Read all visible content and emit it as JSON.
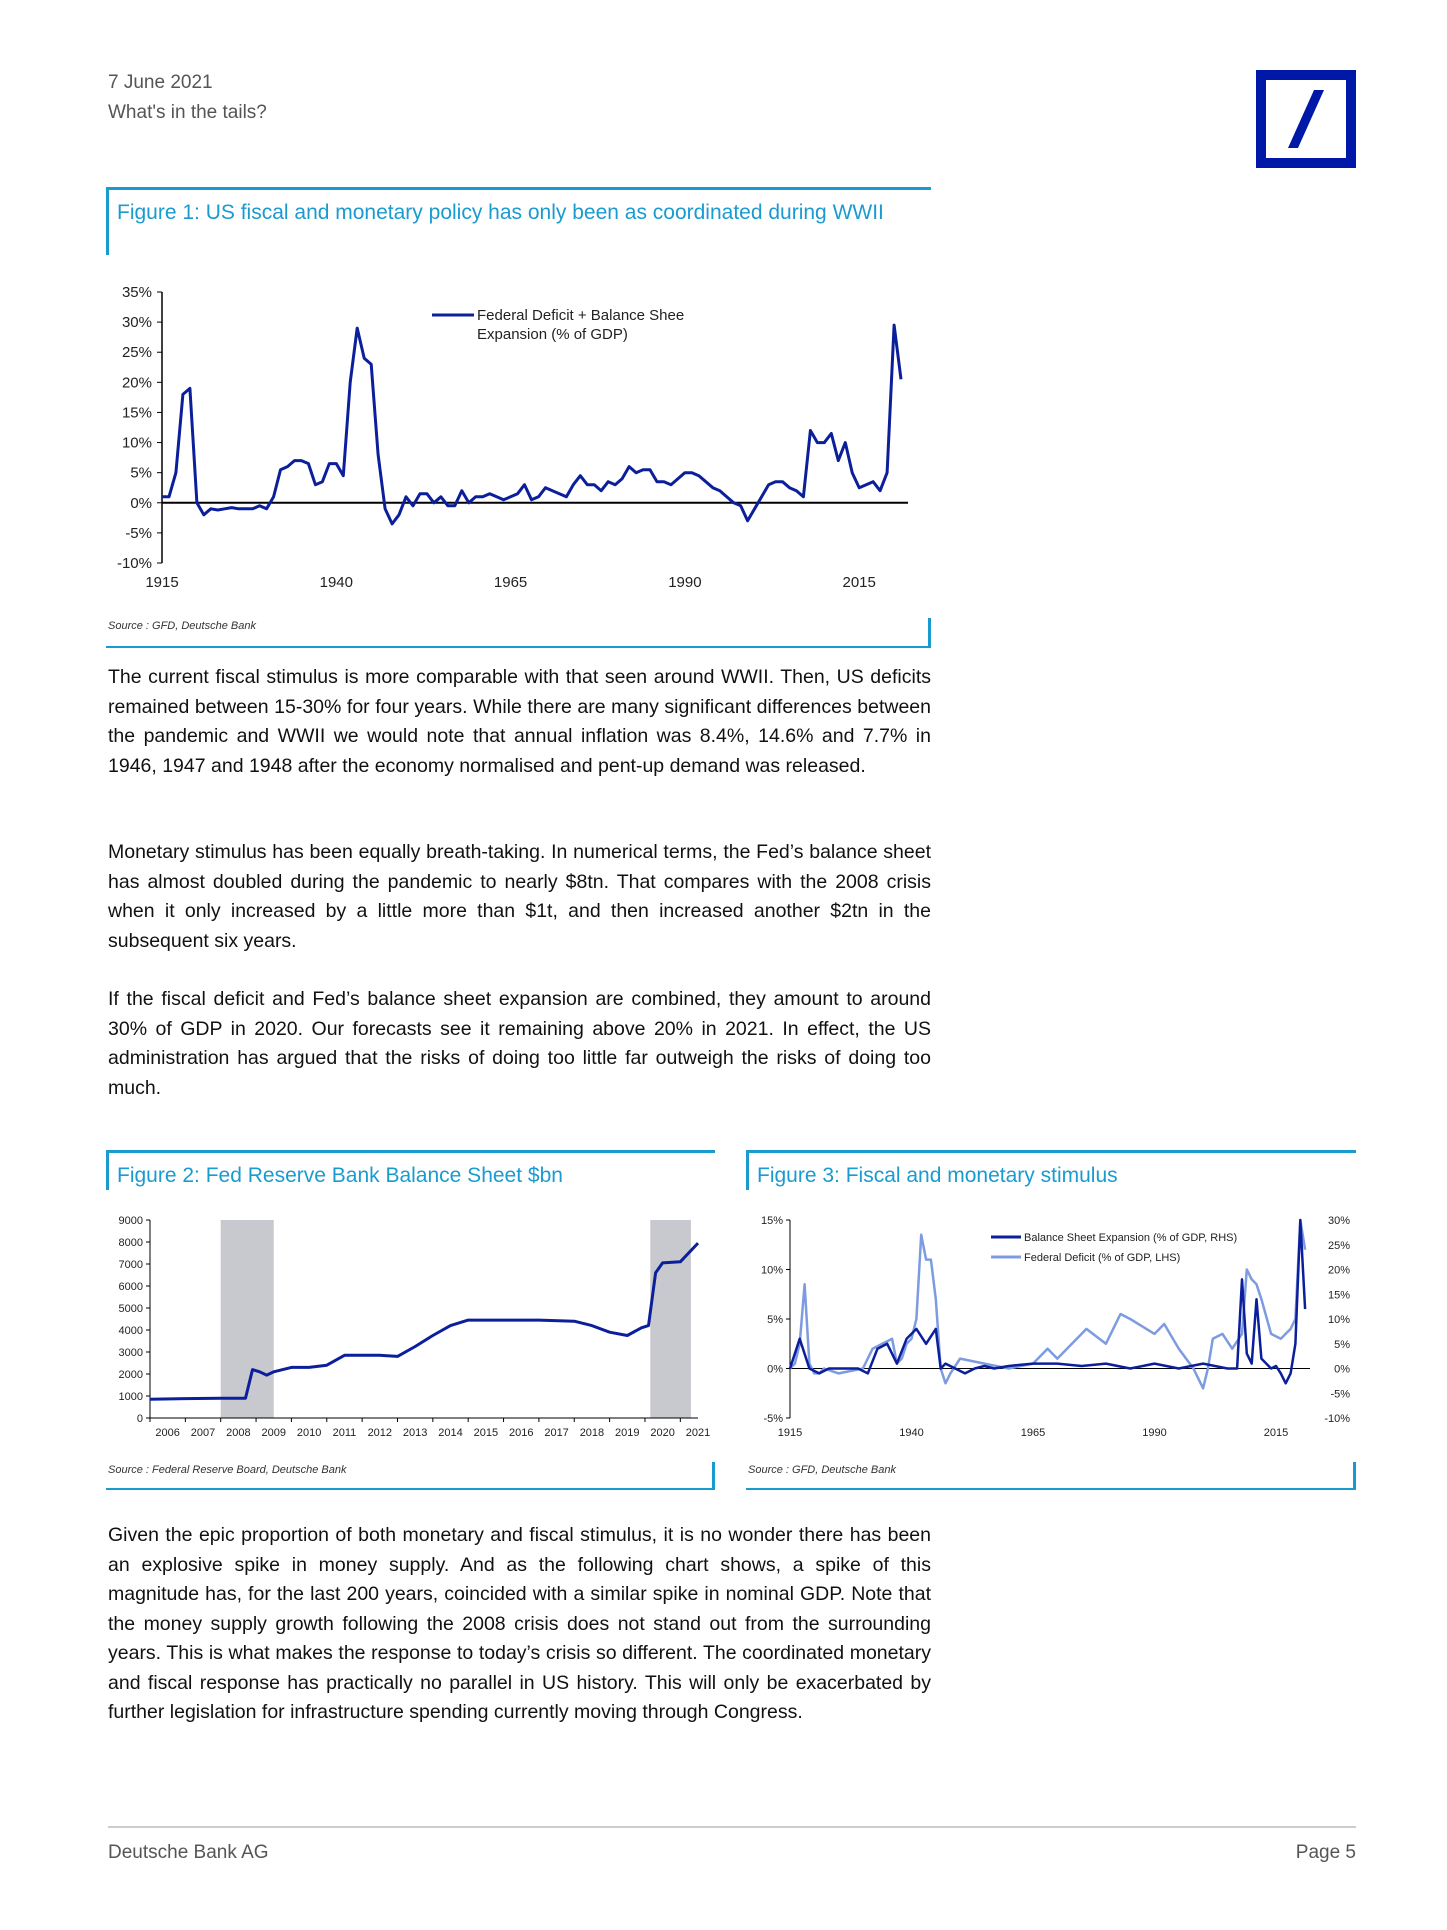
{
  "header": {
    "date": "7 June 2021",
    "title": "What's in the tails?"
  },
  "colors": {
    "accent": "#1a9bd0",
    "brand": "#0018a8",
    "series_dark": "#0c1f9a",
    "series_light": "#7d9be0",
    "shade": "#c8c8cf"
  },
  "figure1": {
    "title": "Figure 1: US fiscal and monetary policy has only been as coordinated during WWII",
    "source": "Source : GFD, Deutsche Bank",
    "legend": "Federal Deficit + Balance Sheet Expansion (% of GDP)"
  },
  "figure2": {
    "title": "Figure 2: Fed Reserve Bank Balance Sheet $bn",
    "source": "Source : Federal Reserve Board, Deutsche Bank"
  },
  "figure3": {
    "title": "Figure 3: Fiscal and monetary stimulus",
    "source": "Source : GFD, Deutsche Bank",
    "legend": [
      "Balance Sheet Expansion (% of GDP, RHS)",
      "Federal Deficit (% of GDP, LHS)"
    ]
  },
  "paragraphs": [
    "The current fiscal stimulus is more comparable with that seen around WWII. Then, US deficits remained between 15-30% for four years. While there are many significant differences between the pandemic and WWII we would note that annual inflation was 8.4%, 14.6% and 7.7% in 1946, 1947 and 1948 after the economy normalised and pent-up demand was released.",
    "Monetary stimulus has been equally breath-taking. In numerical terms, the Fed’s balance sheet has almost doubled during the pandemic to nearly $8tn. That compares with the 2008 crisis when it only increased by a little more than $1t, and then increased another $2tn in the subsequent six years.",
    "If the fiscal deficit and Fed’s balance sheet expansion are combined, they amount to around 30% of GDP in 2020. Our forecasts see it remaining above 20% in 2021. In effect, the US administration has argued that the risks of doing too little far outweigh the risks of doing too much.",
    "Given the epic proportion of both monetary and fiscal stimulus, it is no wonder there has been an explosive spike in money supply. And as the following chart shows, a spike of this magnitude has, for the last 200 years, coincided with a similar spike in nominal GDP. Note that the money supply growth following the 2008 crisis does not stand out from the surrounding years. This is what makes the response to today’s crisis so different. The coordinated monetary and fiscal response has practically no parallel in US history. This will only be exacerbated by further legislation for infrastructure spending currently moving through Congress."
  ],
  "footer": {
    "left": "Deutsche Bank AG",
    "right": "Page 5"
  },
  "chart_data": [
    {
      "id": "figure1",
      "type": "line",
      "ylim": [
        -10,
        35
      ],
      "xlim": [
        1915,
        2022
      ],
      "yticks": [
        "35%",
        "30%",
        "25%",
        "20%",
        "15%",
        "10%",
        "5%",
        "0%",
        "-5%",
        "-10%"
      ],
      "xticks": [
        "1915",
        "1940",
        "1965",
        "1990",
        "2015"
      ],
      "series": [
        {
          "name": "Federal Deficit + Balance Sheet Expansion (% of GDP)",
          "x": [
            1915,
            1916,
            1917,
            1918,
            1919,
            1920,
            1921,
            1922,
            1923,
            1924,
            1925,
            1926,
            1927,
            1928,
            1929,
            1930,
            1931,
            1932,
            1933,
            1934,
            1935,
            1936,
            1937,
            1938,
            1939,
            1940,
            1941,
            1942,
            1943,
            1944,
            1945,
            1946,
            1947,
            1948,
            1949,
            1950,
            1951,
            1952,
            1953,
            1954,
            1955,
            1956,
            1957,
            1958,
            1959,
            1960,
            1961,
            1962,
            1963,
            1964,
            1965,
            1966,
            1967,
            1968,
            1969,
            1970,
            1971,
            1972,
            1973,
            1974,
            1975,
            1976,
            1977,
            1978,
            1979,
            1980,
            1981,
            1982,
            1983,
            1984,
            1985,
            1986,
            1987,
            1988,
            1989,
            1990,
            1991,
            1992,
            1993,
            1994,
            1995,
            1996,
            1997,
            1998,
            1999,
            2000,
            2001,
            2002,
            2003,
            2004,
            2005,
            2006,
            2007,
            2008,
            2009,
            2010,
            2011,
            2012,
            2013,
            2014,
            2015,
            2016,
            2017,
            2018,
            2019,
            2020,
            2021
          ],
          "y": [
            1,
            1,
            5,
            18,
            19,
            0,
            -2,
            -1,
            -1.2,
            -1,
            -0.8,
            -1,
            -1,
            -1,
            -0.5,
            -1,
            1,
            5.5,
            6,
            7,
            7,
            6.5,
            3,
            3.5,
            6.5,
            6.5,
            4.5,
            20,
            29,
            24,
            23,
            8,
            -1,
            -3.5,
            -2,
            1,
            -0.5,
            1.5,
            1.5,
            0,
            1,
            -0.5,
            -0.5,
            2,
            0,
            1,
            1,
            1.5,
            1,
            0.5,
            1,
            1.5,
            3,
            0.5,
            1,
            2.5,
            2,
            1.5,
            1,
            3,
            4.5,
            3,
            3,
            2,
            3.5,
            3,
            4,
            6,
            5,
            5.5,
            5.5,
            3.5,
            3.5,
            3,
            4,
            5,
            5,
            4.5,
            3.5,
            2.5,
            2,
            1,
            0,
            -0.5,
            -3,
            -1,
            1,
            3,
            3.5,
            3.5,
            2.5,
            2,
            1,
            12,
            10,
            10,
            11.5,
            7,
            10,
            5,
            2.5,
            3,
            3.5,
            2,
            5,
            29.5,
            20.5
          ]
        }
      ]
    },
    {
      "id": "figure2",
      "type": "line",
      "ylim": [
        0,
        9000
      ],
      "xlim": [
        2006,
        2021.5
      ],
      "yticks": [
        "9000",
        "8000",
        "7000",
        "6000",
        "5000",
        "4000",
        "3000",
        "2000",
        "1000",
        "0"
      ],
      "xticks": [
        "2006",
        "2007",
        "2008",
        "2009",
        "2010",
        "2011",
        "2012",
        "2013",
        "2014",
        "2015",
        "2016",
        "2017",
        "2018",
        "2019",
        "2020",
        "2021"
      ],
      "shaded_ranges": [
        [
          2008.0,
          2009.5
        ],
        [
          2020.15,
          2021.3
        ]
      ],
      "series": [
        {
          "name": "",
          "x": [
            2006,
            2007,
            2008,
            2008.7,
            2008.9,
            2009.1,
            2009.3,
            2009.5,
            2010,
            2010.5,
            2011,
            2011.5,
            2012,
            2012.5,
            2013,
            2013.5,
            2014,
            2014.5,
            2015,
            2016,
            2017,
            2018,
            2018.5,
            2019,
            2019.5,
            2019.9,
            2020.1,
            2020.3,
            2020.5,
            2021,
            2021.5
          ],
          "y": [
            850,
            880,
            900,
            900,
            2200,
            2100,
            1950,
            2100,
            2300,
            2300,
            2400,
            2850,
            2850,
            2850,
            2800,
            3250,
            3750,
            4200,
            4450,
            4450,
            4450,
            4400,
            4200,
            3900,
            3750,
            4100,
            4200,
            6600,
            7050,
            7100,
            7950
          ]
        }
      ]
    },
    {
      "id": "figure3",
      "type": "line",
      "ylim_left": [
        -5,
        15
      ],
      "ylim_right": [
        -10,
        30
      ],
      "xlim": [
        1915,
        2022
      ],
      "yticks_left": [
        "15%",
        "10%",
        "5%",
        "0%",
        "-5%"
      ],
      "yticks_right": [
        "30%",
        "25%",
        "20%",
        "15%",
        "10%",
        "5%",
        "0%",
        "-5%",
        "-10%"
      ],
      "xticks": [
        "1915",
        "1940",
        "1965",
        "1990",
        "2015"
      ],
      "series": [
        {
          "name": "Balance Sheet Expansion (% of GDP, RHS)",
          "axis": "right",
          "x": [
            1915,
            1917,
            1919,
            1921,
            1923,
            1925,
            1927,
            1929,
            1931,
            1933,
            1935,
            1937,
            1939,
            1941,
            1943,
            1945,
            1946,
            1947,
            1949,
            1951,
            1953,
            1955,
            1957,
            1960,
            1965,
            1970,
            1975,
            1980,
            1985,
            1990,
            1995,
            2000,
            2005,
            2007,
            2008,
            2009,
            2010,
            2011,
            2012,
            2013,
            2014,
            2015,
            2016,
            2017,
            2018,
            2019,
            2020,
            2021
          ],
          "y": [
            0,
            6,
            0,
            -1,
            0,
            0,
            0,
            0,
            -1,
            4,
            5,
            1,
            6,
            8,
            5,
            8,
            0,
            1,
            0,
            -1,
            0,
            0.5,
            0,
            0.5,
            1,
            1,
            0.5,
            1,
            0,
            1,
            0,
            1,
            0,
            0,
            18,
            3,
            1,
            14,
            2,
            1,
            0,
            0.5,
            -1,
            -3,
            -1,
            5,
            30,
            12
          ]
        },
        {
          "name": "Federal Deficit (% of GDP, LHS)",
          "axis": "left",
          "x": [
            1915,
            1916,
            1917,
            1918,
            1919,
            1920,
            1921,
            1922,
            1925,
            1930,
            1932,
            1934,
            1936,
            1937,
            1938,
            1939,
            1940,
            1941,
            1942,
            1943,
            1944,
            1945,
            1946,
            1947,
            1948,
            1950,
            1955,
            1960,
            1965,
            1968,
            1970,
            1975,
            1976,
            1980,
            1983,
            1985,
            1990,
            1992,
            1995,
            1998,
            2000,
            2001,
            2002,
            2004,
            2006,
            2008,
            2009,
            2010,
            2011,
            2012,
            2014,
            2016,
            2018,
            2019,
            2020,
            2021
          ],
          "y": [
            0,
            0.5,
            2.5,
            8.5,
            0.5,
            -0.5,
            -0.5,
            0,
            -0.5,
            0,
            2,
            2.5,
            3,
            0.5,
            1,
            2.5,
            3,
            5,
            13.5,
            11,
            11,
            7,
            0,
            -1.5,
            -0.5,
            1,
            0.5,
            0,
            0.5,
            2,
            1,
            3.5,
            4,
            2.5,
            5.5,
            5,
            3.5,
            4.5,
            2,
            0,
            -2,
            0,
            3,
            3.5,
            2,
            3.5,
            10,
            9,
            8.5,
            7,
            3.5,
            3,
            4,
            5,
            15,
            12
          ]
        }
      ]
    }
  ]
}
